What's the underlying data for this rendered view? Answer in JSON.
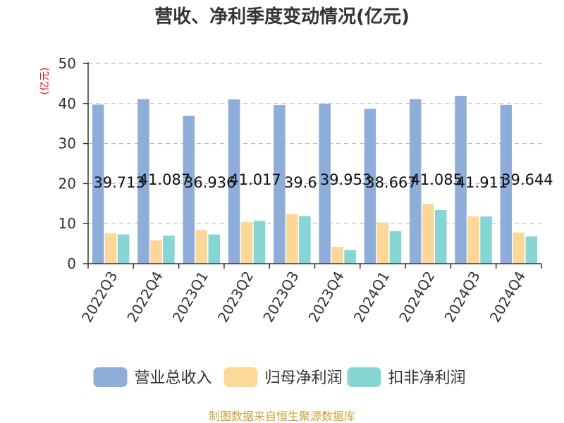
{
  "chart_data": {
    "type": "bar",
    "title": "营收、净利季度变动情况(亿元)",
    "ylabel": "(亿元)",
    "ylim": [
      0,
      50
    ],
    "yticks": [
      0,
      10,
      20,
      30,
      40,
      50
    ],
    "grid": true,
    "legend_position": "bottom",
    "categories": [
      "2022Q3",
      "2022Q4",
      "2023Q1",
      "2023Q2",
      "2023Q3",
      "2023Q4",
      "2024Q1",
      "2024Q2",
      "2024Q3",
      "2024Q4"
    ],
    "series": [
      {
        "name": "营业总收入",
        "color": "#8eadd9",
        "labeled": true,
        "values": [
          39.713,
          41.087,
          36.936,
          41.017,
          39.6,
          39.953,
          38.667,
          41.085,
          41.911,
          39.644
        ]
      },
      {
        "name": "归母净利润",
        "color": "#fdd797",
        "labeled": false,
        "values": [
          7.6,
          5.8,
          8.4,
          10.4,
          12.4,
          4.2,
          10.3,
          14.9,
          11.8,
          7.8
        ]
      },
      {
        "name": "扣非净利润",
        "color": "#86d5d5",
        "labeled": false,
        "values": [
          7.3,
          7.0,
          7.3,
          10.7,
          11.9,
          3.4,
          8.1,
          13.4,
          11.8,
          6.8
        ]
      }
    ]
  },
  "source_text": "制图数据来自恒生聚源数据库"
}
